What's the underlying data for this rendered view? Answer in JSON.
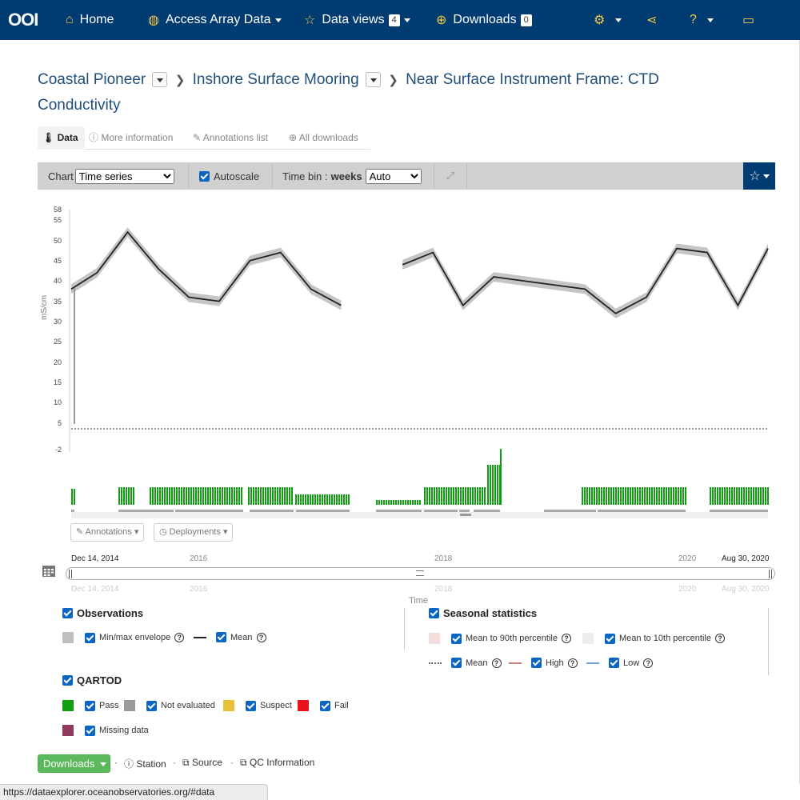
{
  "navbar": {
    "logo": "OOI",
    "home": "Home",
    "access": "Access Array Data",
    "dataviews": "Data views",
    "dataviews_count": "4",
    "downloads": "Downloads",
    "downloads_count": "0"
  },
  "breadcrumb": {
    "site": "Coastal Pioneer",
    "node": "Inshore Surface Mooring",
    "instrument": "Near Surface Instrument Frame: CTD Conductivity"
  },
  "tabs": {
    "data": "Data",
    "more": "More information",
    "annotations": "Annotations list",
    "alldl": "All downloads"
  },
  "toolbar": {
    "chart_label": "Chart",
    "chart_value": "Time series",
    "autoscale": "Autoscale",
    "timebin_label": "Time bin :",
    "timebin_unit": "weeks",
    "timebin_value": "Auto"
  },
  "chart_data": {
    "type": "line",
    "ylabel": "mS/cm",
    "y_ticks": [
      "58",
      "55",
      "50",
      "45",
      "40",
      "35",
      "30",
      "25",
      "20",
      "15",
      "10",
      "5",
      "-2"
    ],
    "x_ticks": [
      "Dec 14, 2014",
      "2016",
      "2018",
      "2020",
      "Aug 30, 2020"
    ],
    "xlabel": "Time",
    "series": [
      {
        "name": "Mean",
        "x": [
          "2014-12-14",
          "2015-03-01",
          "2015-06-01",
          "2015-09-01",
          "2015-12-01",
          "2016-03-01",
          "2016-06-01",
          "2016-09-01",
          "2016-12-01",
          "2017-03-01",
          "2017-06-01",
          "2017-09-01",
          "2017-12-01",
          "2018-03-01",
          "2018-06-01",
          "2019-03-01",
          "2019-06-01",
          "2019-09-01",
          "2019-12-01",
          "2020-03-01",
          "2020-06-01",
          "2020-08-30"
        ],
        "values": [
          38,
          42,
          52,
          43,
          36,
          35,
          45,
          47,
          38,
          34,
          null,
          44,
          47,
          34,
          41,
          38,
          32,
          36,
          48,
          47,
          34,
          48
        ]
      }
    ]
  },
  "chart_buttons": {
    "annotations": "Annotations",
    "deployments": "Deployments"
  },
  "timeline": {
    "start": "Dec 14, 2014",
    "t2016": "2016",
    "t2018": "2018",
    "t2020": "2020",
    "end": "Aug 30, 2020",
    "label": "Time"
  },
  "legend": {
    "observations": "Observations",
    "minmax": "Min/max envelope",
    "mean": "Mean",
    "seasonal": "Seasonal statistics",
    "mean90": "Mean to 90th percentile",
    "mean10": "Mean to 10th percentile",
    "smean": "Mean",
    "high": "High",
    "low": "Low",
    "qartod": "QARTOD",
    "pass": "Pass",
    "noteval": "Not evaluated",
    "suspect": "Suspect",
    "fail": "Fail",
    "missing": "Missing data"
  },
  "colors": {
    "pass": "#129e12",
    "not_evaluated": "#999999",
    "suspect": "#e8c03a",
    "fail": "#e8141c",
    "missing": "#8e3b5e",
    "envelope": "#bfbfbf",
    "mean90": "#f3dede",
    "mean10": "#ececec",
    "high": "#c8877a",
    "low": "#6fa2d8",
    "nav": "#003b71"
  },
  "footer": {
    "downloads": "Downloads",
    "station": "Station",
    "source": "Source",
    "qc": "QC Information"
  },
  "status_url": "https://dataexplorer.oceanobservatories.org/#data"
}
